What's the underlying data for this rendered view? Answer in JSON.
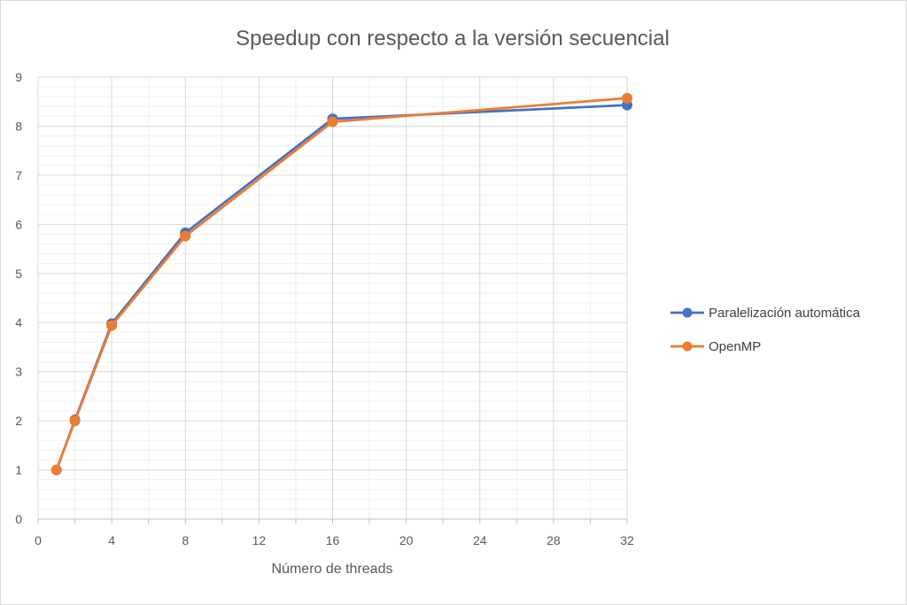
{
  "chart_data": {
    "type": "line",
    "title": "Speedup con respecto a la versión secuencial",
    "xlabel": "Número de threads",
    "ylabel": "",
    "xlim": [
      0,
      32
    ],
    "ylim": [
      0,
      9
    ],
    "x_ticks": [
      0,
      4,
      8,
      12,
      16,
      20,
      24,
      28,
      32
    ],
    "y_ticks": [
      0,
      1,
      2,
      3,
      4,
      5,
      6,
      7,
      8,
      9
    ],
    "grid": true,
    "legend_position": "right",
    "series": [
      {
        "name": "Paralelización automática",
        "color": "#4472c4",
        "x": [
          1,
          2,
          4,
          8,
          16,
          32
        ],
        "values": [
          1.0,
          2.02,
          3.98,
          5.83,
          8.15,
          8.43
        ]
      },
      {
        "name": "OpenMP",
        "color": "#ed7d31",
        "x": [
          1,
          2,
          4,
          8,
          16,
          32
        ],
        "values": [
          1.0,
          2.0,
          3.94,
          5.76,
          8.09,
          8.57
        ]
      }
    ]
  }
}
